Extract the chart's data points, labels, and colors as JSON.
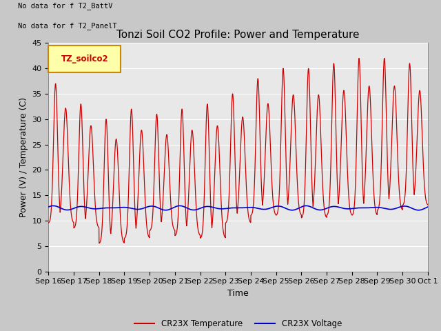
{
  "title": "Tonzi Soil CO2 Profile: Power and Temperature",
  "ylabel": "Power (V) / Temperature (C)",
  "xlabel": "Time",
  "ylim": [
    0,
    45
  ],
  "no_data_texts": [
    "No data for f T2_BattV",
    "No data for f T2_PanelT"
  ],
  "legend_box_label": "TZ_soilco2",
  "x_tick_labels": [
    "Sep 16",
    "Sep 17",
    "Sep 18",
    "Sep 19",
    "Sep 20",
    "Sep 21",
    "Sep 22",
    "Sep 23",
    "Sep 24",
    "Sep 25",
    "Sep 26",
    "Sep 27",
    "Sep 28",
    "Sep 29",
    "Sep 30",
    "Oct 1"
  ],
  "line_temp_color": "#cc0000",
  "line_volt_color": "#0000cc",
  "fig_bg_color": "#c8c8c8",
  "plot_bg_color": "#e8e8e8",
  "grid_color": "#ffffff",
  "legend_temp_label": "CR23X Temperature",
  "legend_volt_label": "CR23X Voltage",
  "title_fontsize": 11,
  "axis_label_fontsize": 9,
  "tick_fontsize": 8,
  "peak_heights": [
    37,
    33,
    30,
    32,
    31,
    32,
    33,
    35,
    38,
    40,
    40,
    41,
    42,
    42,
    41,
    37
  ],
  "trough_values": [
    9.5,
    8.5,
    5.5,
    6.5,
    8.0,
    7.0,
    6.5,
    9.5,
    11,
    11,
    10.5,
    11,
    11,
    12,
    13,
    15
  ],
  "volt_base": 12.5,
  "volt_amp": 0.6
}
